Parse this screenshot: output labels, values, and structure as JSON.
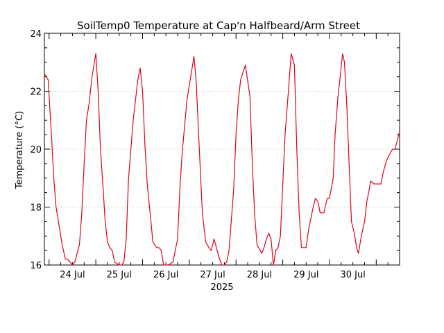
{
  "chart_data": {
    "type": "line",
    "title": "SoilTemp0 Temperature at Cap'n Halfbeard/Arm Street",
    "ylabel": "Temperature (°C)",
    "xlabel": "2025",
    "ylim": [
      16,
      24
    ],
    "xlim": [
      -0.6,
      7.0
    ],
    "yticks": [
      16,
      18,
      20,
      22,
      24
    ],
    "ytick_labels": [
      "16",
      "18",
      "20",
      "22",
      "24"
    ],
    "xticks": [
      0,
      1,
      2,
      3,
      4,
      5,
      6
    ],
    "xtick_labels": [
      "24 Jul",
      "25 Jul",
      "26 Jul",
      "27 Jul",
      "28 Jul",
      "29 Jul",
      "30 Jul"
    ],
    "grid": true,
    "series": [
      {
        "color": "#e0001b",
        "x": [
          -0.6,
          -0.52,
          -0.45,
          -0.4,
          -0.35,
          -0.3,
          -0.22,
          -0.15,
          -0.1,
          -0.05,
          0.0,
          0.05,
          0.15,
          0.2,
          0.25,
          0.3,
          0.35,
          0.42,
          0.5,
          0.55,
          0.6,
          0.65,
          0.7,
          0.75,
          0.8,
          0.85,
          0.9,
          1.0,
          1.05,
          1.1,
          1.15,
          1.2,
          1.3,
          1.4,
          1.45,
          1.5,
          1.55,
          1.6,
          1.68,
          1.72,
          1.8,
          1.85,
          1.9,
          1.95,
          2.05,
          2.15,
          2.25,
          2.3,
          2.35,
          2.45,
          2.55,
          2.6,
          2.65,
          2.7,
          2.78,
          2.85,
          2.92,
          2.97,
          3.03,
          3.08,
          3.15,
          3.2,
          3.25,
          3.3,
          3.35,
          3.45,
          3.5,
          3.55,
          3.6,
          3.7,
          3.8,
          3.85,
          3.9,
          3.95,
          4.02,
          4.05,
          4.1,
          4.15,
          4.2,
          4.25,
          4.3,
          4.35,
          4.4,
          4.45,
          4.5,
          4.55,
          4.62,
          4.68,
          4.75,
          4.8,
          4.85,
          4.9,
          4.95,
          5.0,
          5.05,
          5.1,
          5.15,
          5.2,
          5.25,
          5.3,
          5.38,
          5.45,
          5.5,
          5.58,
          5.62,
          5.68,
          5.73,
          5.78,
          5.82,
          5.87,
          5.92,
          5.97,
          6.03,
          6.08,
          6.12,
          6.18,
          6.25,
          6.3,
          6.35,
          6.38,
          6.45,
          6.5,
          6.55,
          6.6,
          6.65,
          6.72,
          6.78,
          6.85,
          6.9,
          7.0
        ],
        "y": [
          22.6,
          22.4,
          20.5,
          19.0,
          18.0,
          17.5,
          16.7,
          16.2,
          16.2,
          16.1,
          16.0,
          16.1,
          16.7,
          17.8,
          19.5,
          21.0,
          21.5,
          22.5,
          23.3,
          22.0,
          20.0,
          18.8,
          17.5,
          16.8,
          16.6,
          16.5,
          16.1,
          16.0,
          16.0,
          16.1,
          16.9,
          19.0,
          21.0,
          22.4,
          22.8,
          22.0,
          20.2,
          18.8,
          17.5,
          16.8,
          16.6,
          16.6,
          16.5,
          16.0,
          16.0,
          16.1,
          16.9,
          18.7,
          19.9,
          21.7,
          22.7,
          23.2,
          22.3,
          20.5,
          17.8,
          16.8,
          16.6,
          16.5,
          16.9,
          16.6,
          16.2,
          16.0,
          16.0,
          16.1,
          16.5,
          18.6,
          20.5,
          21.7,
          22.4,
          22.9,
          21.8,
          19.4,
          17.7,
          16.7,
          16.5,
          16.4,
          16.6,
          16.9,
          17.1,
          16.9,
          16.0,
          16.5,
          16.6,
          17.0,
          18.8,
          20.5,
          22.0,
          23.3,
          22.9,
          20.0,
          17.8,
          16.6,
          16.6,
          16.6,
          17.2,
          17.6,
          18.0,
          18.3,
          18.2,
          17.8,
          17.8,
          18.3,
          18.3,
          19.0,
          20.5,
          21.8,
          22.5,
          23.3,
          23.0,
          21.5,
          19.5,
          17.5,
          17.1,
          16.6,
          16.4,
          17.0,
          17.5,
          18.2,
          18.6,
          18.9,
          18.8,
          18.8,
          18.8,
          18.8,
          19.2,
          19.6,
          19.8,
          20.0,
          20.0,
          20.6
        ]
      }
    ]
  }
}
